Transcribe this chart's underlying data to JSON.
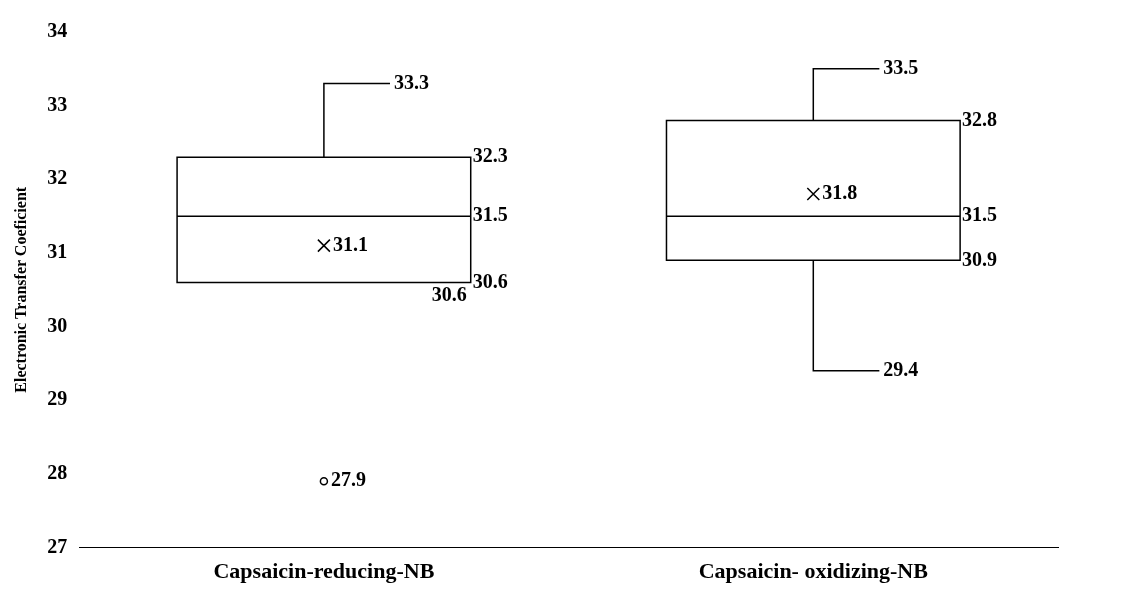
{
  "chart_data": {
    "type": "box",
    "ylabel": "Electronic Transfer Coeficient",
    "categories": [
      "Capsaicin-reducing-NB",
      "Capsaicin- oxidizing-NB"
    ],
    "boxes": [
      {
        "low": 30.6,
        "q1": 30.6,
        "median": 31.5,
        "q3": 32.3,
        "high": 33.3,
        "mean": 31.1,
        "outliers": [
          27.9
        ]
      },
      {
        "low": 29.4,
        "q1": 30.9,
        "median": 31.5,
        "q3": 32.8,
        "high": 33.5,
        "mean": 31.8
      }
    ],
    "annotations": [
      "33.3",
      "32.3",
      "31.5",
      "31.1",
      "30.6",
      "30.6",
      "27.9",
      "33.5",
      "32.8",
      "31.5",
      "31.8",
      "29.4",
      "30.9"
    ],
    "ylim": [
      27,
      34
    ],
    "yticks": [
      27,
      28,
      29,
      30,
      31,
      32,
      33,
      34
    ],
    "grid": false,
    "legend": false
  }
}
